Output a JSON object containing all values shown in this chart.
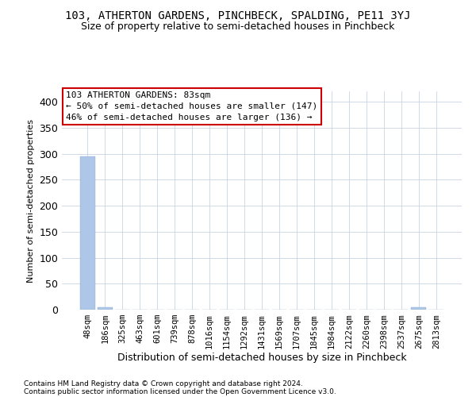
{
  "title": "103, ATHERTON GARDENS, PINCHBECK, SPALDING, PE11 3YJ",
  "subtitle": "Size of property relative to semi-detached houses in Pinchbeck",
  "xlabel": "Distribution of semi-detached houses by size in Pinchbeck",
  "ylabel": "Number of semi-detached properties",
  "footnote1": "Contains HM Land Registry data © Crown copyright and database right 2024.",
  "footnote2": "Contains public sector information licensed under the Open Government Licence v3.0.",
  "annotation_title": "103 ATHERTON GARDENS: 83sqm",
  "annotation_line1": "← 50% of semi-detached houses are smaller (147)",
  "annotation_line2": "46% of semi-detached houses are larger (136) →",
  "categories": [
    "48sqm",
    "186sqm",
    "325sqm",
    "463sqm",
    "601sqm",
    "739sqm",
    "878sqm",
    "1016sqm",
    "1154sqm",
    "1292sqm",
    "1431sqm",
    "1569sqm",
    "1707sqm",
    "1845sqm",
    "1984sqm",
    "2122sqm",
    "2260sqm",
    "2398sqm",
    "2537sqm",
    "2675sqm",
    "2813sqm"
  ],
  "values": [
    295,
    5,
    0,
    0,
    0,
    0,
    0,
    0,
    0,
    0,
    0,
    0,
    0,
    0,
    0,
    0,
    0,
    0,
    0,
    4,
    0
  ],
  "bar_color": "#aec6e8",
  "annotation_box_color": "#cc0000",
  "ylim": [
    0,
    420
  ],
  "yticks": [
    0,
    50,
    100,
    150,
    200,
    250,
    300,
    350,
    400
  ],
  "background_color": "#ffffff",
  "grid_color": "#c8d4e3",
  "title_fontsize": 10,
  "subtitle_fontsize": 9,
  "ylabel_fontsize": 8,
  "xlabel_fontsize": 9,
  "annotation_fontsize": 8,
  "tick_fontsize": 7.5,
  "footnote_fontsize": 6.5
}
